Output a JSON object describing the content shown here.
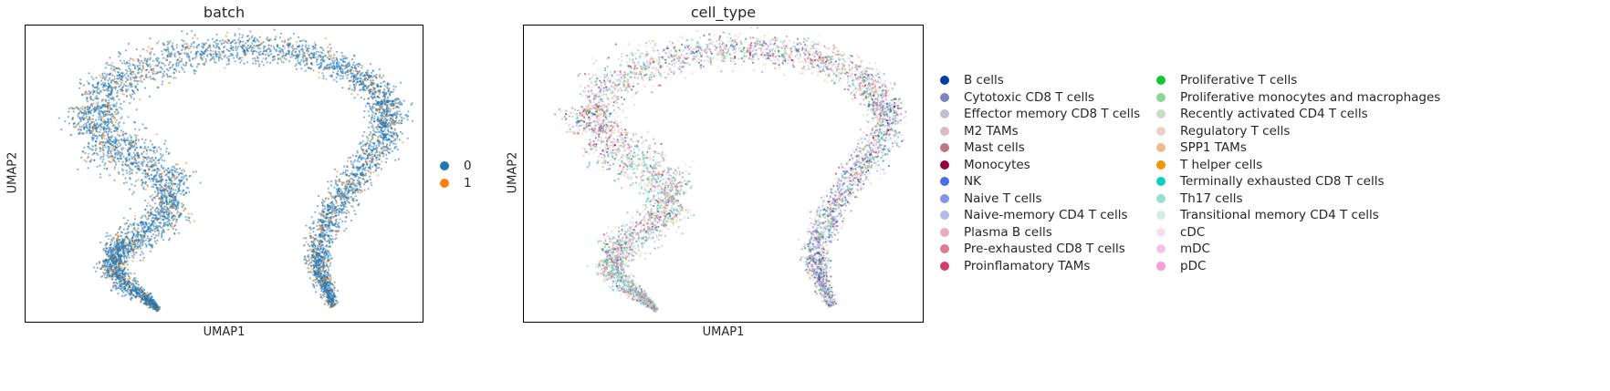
{
  "chart_data": [
    {
      "type": "scatter",
      "title": "batch",
      "xlabel": "UMAP1",
      "ylabel": "UMAP2",
      "grid": false,
      "legend_position": "right",
      "series": [
        {
          "name": "0",
          "color": "#1f77b4"
        },
        {
          "name": "1",
          "color": "#ff7f0e"
        }
      ]
    },
    {
      "type": "scatter",
      "title": "cell_type",
      "xlabel": "UMAP1",
      "ylabel": "UMAP2",
      "grid": false,
      "legend_position": "right",
      "series": [
        {
          "name": "B cells",
          "color": "#023fa5"
        },
        {
          "name": "Cytotoxic CD8 T cells",
          "color": "#7d87b9"
        },
        {
          "name": "Effector memory CD8 T cells",
          "color": "#bec1d4"
        },
        {
          "name": "M2 TAMs",
          "color": "#d6bcc0"
        },
        {
          "name": "Mast cells",
          "color": "#bb7784"
        },
        {
          "name": "Monocytes",
          "color": "#8e063b"
        },
        {
          "name": "NK",
          "color": "#4a6fe3"
        },
        {
          "name": "Naive T cells",
          "color": "#8595e1"
        },
        {
          "name": "Naive-memory CD4 T cells",
          "color": "#b5bbe3"
        },
        {
          "name": "Plasma B cells",
          "color": "#e6afb9"
        },
        {
          "name": "Pre-exhausted CD8 T cells",
          "color": "#e07b91"
        },
        {
          "name": "Proinflamatory TAMs",
          "color": "#d33f6a"
        },
        {
          "name": "Proliferative T cells",
          "color": "#11c638"
        },
        {
          "name": "Proliferative monocytes and macrophages",
          "color": "#8dd593"
        },
        {
          "name": "Recently activated CD4 T cells",
          "color": "#c6dec7"
        },
        {
          "name": "Regulatory T cells",
          "color": "#ead3c6"
        },
        {
          "name": "SPP1 TAMs",
          "color": "#f0b98d"
        },
        {
          "name": "T helper cells",
          "color": "#ef9708"
        },
        {
          "name": "Terminally exhausted CD8 T cells",
          "color": "#0fcfc0"
        },
        {
          "name": "Th17 cells",
          "color": "#9cded6"
        },
        {
          "name": "Transitional memory CD4 T cells",
          "color": "#d5eae7"
        },
        {
          "name": "cDC",
          "color": "#f3e1eb"
        },
        {
          "name": "mDC",
          "color": "#f6c4e1"
        },
        {
          "name": "pDC",
          "color": "#f79cd4"
        }
      ]
    }
  ]
}
